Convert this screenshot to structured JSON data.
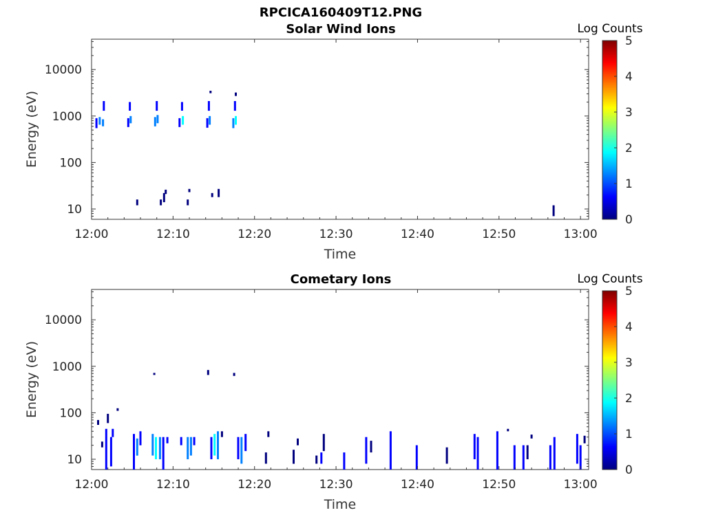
{
  "page_title": "RPCICA160409T12.PNG",
  "colormap": [
    "#00007f",
    "#0000ff",
    "#0080ff",
    "#00ffff",
    "#80ff80",
    "#ffff00",
    "#ff8000",
    "#ff0000",
    "#7f0000"
  ],
  "chart_data": [
    {
      "type": "heatmap",
      "title": "Solar Wind Ions",
      "xlabel": "Time",
      "ylabel": "Energy (eV)",
      "x_ticks": [
        "12:00",
        "12:10",
        "12:20",
        "12:30",
        "12:40",
        "12:50",
        "13:00"
      ],
      "y_ticks": [
        "10",
        "100",
        "1000",
        "10000"
      ],
      "yscale": "log",
      "ylim": [
        6,
        45000
      ],
      "xlim_minutes": [
        0,
        61
      ],
      "colorbar": {
        "label": "Log Counts",
        "ticks": [
          "0",
          "1",
          "2",
          "3",
          "4",
          "5"
        ],
        "range": [
          0,
          5
        ]
      },
      "cells": [
        {
          "t": 0.6,
          "e0": 550,
          "e1": 900,
          "v": 0.8
        },
        {
          "t": 1.0,
          "e0": 650,
          "e1": 950,
          "v": 1.2
        },
        {
          "t": 1.4,
          "e0": 600,
          "e1": 850,
          "v": 1.0
        },
        {
          "t": 1.5,
          "e0": 1300,
          "e1": 2100,
          "v": 0.5
        },
        {
          "t": 4.5,
          "e0": 580,
          "e1": 900,
          "v": 0.9
        },
        {
          "t": 4.8,
          "e0": 700,
          "e1": 1000,
          "v": 1.4
        },
        {
          "t": 4.7,
          "e0": 1300,
          "e1": 2000,
          "v": 0.6
        },
        {
          "t": 7.8,
          "e0": 600,
          "e1": 950,
          "v": 1.0
        },
        {
          "t": 8.1,
          "e0": 700,
          "e1": 1050,
          "v": 1.5
        },
        {
          "t": 8.0,
          "e0": 1300,
          "e1": 2100,
          "v": 0.6
        },
        {
          "t": 10.8,
          "e0": 580,
          "e1": 900,
          "v": 0.8
        },
        {
          "t": 11.2,
          "e0": 650,
          "e1": 1000,
          "v": 1.6
        },
        {
          "t": 11.1,
          "e0": 1300,
          "e1": 2000,
          "v": 0.7
        },
        {
          "t": 14.2,
          "e0": 560,
          "e1": 900,
          "v": 0.9
        },
        {
          "t": 14.5,
          "e0": 650,
          "e1": 1000,
          "v": 1.5
        },
        {
          "t": 14.4,
          "e0": 1300,
          "e1": 2100,
          "v": 0.8
        },
        {
          "t": 14.6,
          "e0": 3100,
          "e1": 3500,
          "v": 0.3
        },
        {
          "t": 17.4,
          "e0": 550,
          "e1": 900,
          "v": 1.0
        },
        {
          "t": 17.7,
          "e0": 650,
          "e1": 1000,
          "v": 1.7
        },
        {
          "t": 17.6,
          "e0": 1300,
          "e1": 2100,
          "v": 0.8
        },
        {
          "t": 17.7,
          "e0": 2700,
          "e1": 3200,
          "v": 0.3
        },
        {
          "t": 5.6,
          "e0": 12,
          "e1": 16,
          "v": 0.2
        },
        {
          "t": 8.5,
          "e0": 12,
          "e1": 16,
          "v": 0.2
        },
        {
          "t": 8.9,
          "e0": 14,
          "e1": 22,
          "v": 0.3
        },
        {
          "t": 9.1,
          "e0": 21,
          "e1": 26,
          "v": 0.2
        },
        {
          "t": 11.8,
          "e0": 12,
          "e1": 16,
          "v": 0.2
        },
        {
          "t": 12.0,
          "e0": 23,
          "e1": 27,
          "v": 0.2
        },
        {
          "t": 14.8,
          "e0": 18,
          "e1": 22,
          "v": 0.2
        },
        {
          "t": 15.6,
          "e0": 18,
          "e1": 27,
          "v": 0.2
        },
        {
          "t": 56.7,
          "e0": 7,
          "e1": 12,
          "v": 0.3
        }
      ]
    },
    {
      "type": "heatmap",
      "title": "Cometary Ions",
      "xlabel": "Time",
      "ylabel": "Energy (eV)",
      "x_ticks": [
        "12:00",
        "12:10",
        "12:20",
        "12:30",
        "12:40",
        "12:50",
        "13:00"
      ],
      "y_ticks": [
        "10",
        "100",
        "1000",
        "10000"
      ],
      "yscale": "log",
      "ylim": [
        6,
        45000
      ],
      "xlim_minutes": [
        0,
        61
      ],
      "colorbar": {
        "label": "Log Counts",
        "ticks": [
          "0",
          "1",
          "2",
          "3",
          "4",
          "5"
        ],
        "range": [
          0,
          5
        ]
      },
      "cells": [
        {
          "t": 0.8,
          "e0": 55,
          "e1": 70,
          "v": 0.3
        },
        {
          "t": 1.3,
          "e0": 18,
          "e1": 24,
          "v": 0.3
        },
        {
          "t": 1.8,
          "e0": 6,
          "e1": 45,
          "v": 0.4
        },
        {
          "t": 2.0,
          "e0": 60,
          "e1": 95,
          "v": 0.3
        },
        {
          "t": 2.4,
          "e0": 7,
          "e1": 30,
          "v": 0.5
        },
        {
          "t": 2.6,
          "e0": 30,
          "e1": 45,
          "v": 0.4
        },
        {
          "t": 3.2,
          "e0": 110,
          "e1": 125,
          "v": 0.2
        },
        {
          "t": 5.2,
          "e0": 6,
          "e1": 35,
          "v": 0.7
        },
        {
          "t": 5.6,
          "e0": 12,
          "e1": 28,
          "v": 1.0
        },
        {
          "t": 6.0,
          "e0": 20,
          "e1": 40,
          "v": 0.6
        },
        {
          "t": 7.5,
          "e0": 12,
          "e1": 35,
          "v": 1.1
        },
        {
          "t": 7.9,
          "e0": 10,
          "e1": 30,
          "v": 1.8
        },
        {
          "t": 8.4,
          "e0": 10,
          "e1": 30,
          "v": 1.4
        },
        {
          "t": 8.8,
          "e0": 6,
          "e1": 30,
          "v": 0.8
        },
        {
          "t": 9.3,
          "e0": 22,
          "e1": 30,
          "v": 0.4
        },
        {
          "t": 7.7,
          "e0": 650,
          "e1": 720,
          "v": 0.3
        },
        {
          "t": 11.0,
          "e0": 20,
          "e1": 30,
          "v": 0.4
        },
        {
          "t": 11.8,
          "e0": 10,
          "e1": 30,
          "v": 1.3
        },
        {
          "t": 12.2,
          "e0": 12,
          "e1": 30,
          "v": 1.0
        },
        {
          "t": 12.6,
          "e0": 20,
          "e1": 30,
          "v": 0.6
        },
        {
          "t": 14.3,
          "e0": 650,
          "e1": 830,
          "v": 0.3
        },
        {
          "t": 14.7,
          "e0": 10,
          "e1": 30,
          "v": 0.8
        },
        {
          "t": 15.1,
          "e0": 12,
          "e1": 35,
          "v": 1.6
        },
        {
          "t": 15.5,
          "e0": 10,
          "e1": 40,
          "v": 1.2
        },
        {
          "t": 16.0,
          "e0": 30,
          "e1": 40,
          "v": 0.3
        },
        {
          "t": 17.5,
          "e0": 620,
          "e1": 720,
          "v": 0.3
        },
        {
          "t": 18.0,
          "e0": 10,
          "e1": 30,
          "v": 0.9
        },
        {
          "t": 18.4,
          "e0": 8,
          "e1": 30,
          "v": 1.4
        },
        {
          "t": 18.9,
          "e0": 15,
          "e1": 35,
          "v": 0.7
        },
        {
          "t": 21.4,
          "e0": 8,
          "e1": 14,
          "v": 0.3
        },
        {
          "t": 21.7,
          "e0": 30,
          "e1": 40,
          "v": 0.3
        },
        {
          "t": 24.8,
          "e0": 8,
          "e1": 16,
          "v": 0.3
        },
        {
          "t": 25.3,
          "e0": 20,
          "e1": 28,
          "v": 0.3
        },
        {
          "t": 27.6,
          "e0": 8,
          "e1": 12,
          "v": 0.3
        },
        {
          "t": 28.2,
          "e0": 8,
          "e1": 14,
          "v": 0.4
        },
        {
          "t": 28.5,
          "e0": 15,
          "e1": 35,
          "v": 0.3
        },
        {
          "t": 31.0,
          "e0": 6,
          "e1": 14,
          "v": 0.4
        },
        {
          "t": 33.7,
          "e0": 8,
          "e1": 30,
          "v": 0.4
        },
        {
          "t": 34.3,
          "e0": 14,
          "e1": 25,
          "v": 0.3
        },
        {
          "t": 36.7,
          "e0": 6,
          "e1": 40,
          "v": 0.4
        },
        {
          "t": 39.9,
          "e0": 6,
          "e1": 20,
          "v": 0.4
        },
        {
          "t": 43.6,
          "e0": 8,
          "e1": 18,
          "v": 0.3
        },
        {
          "t": 47.0,
          "e0": 10,
          "e1": 35,
          "v": 0.8
        },
        {
          "t": 47.4,
          "e0": 6,
          "e1": 30,
          "v": 0.5
        },
        {
          "t": 49.8,
          "e0": 6,
          "e1": 40,
          "v": 0.4
        },
        {
          "t": 51.1,
          "e0": 40,
          "e1": 45,
          "v": 0.2
        },
        {
          "t": 51.9,
          "e0": 6,
          "e1": 20,
          "v": 0.4
        },
        {
          "t": 53.0,
          "e0": 6,
          "e1": 20,
          "v": 0.4
        },
        {
          "t": 53.5,
          "e0": 10,
          "e1": 20,
          "v": 0.3
        },
        {
          "t": 54.0,
          "e0": 28,
          "e1": 34,
          "v": 0.2
        },
        {
          "t": 56.3,
          "e0": 6,
          "e1": 20,
          "v": 0.4
        },
        {
          "t": 56.8,
          "e0": 6,
          "e1": 30,
          "v": 0.4
        },
        {
          "t": 59.6,
          "e0": 8,
          "e1": 35,
          "v": 0.5
        },
        {
          "t": 60.0,
          "e0": 6,
          "e1": 20,
          "v": 0.6
        },
        {
          "t": 60.5,
          "e0": 22,
          "e1": 32,
          "v": 0.3
        }
      ]
    }
  ]
}
